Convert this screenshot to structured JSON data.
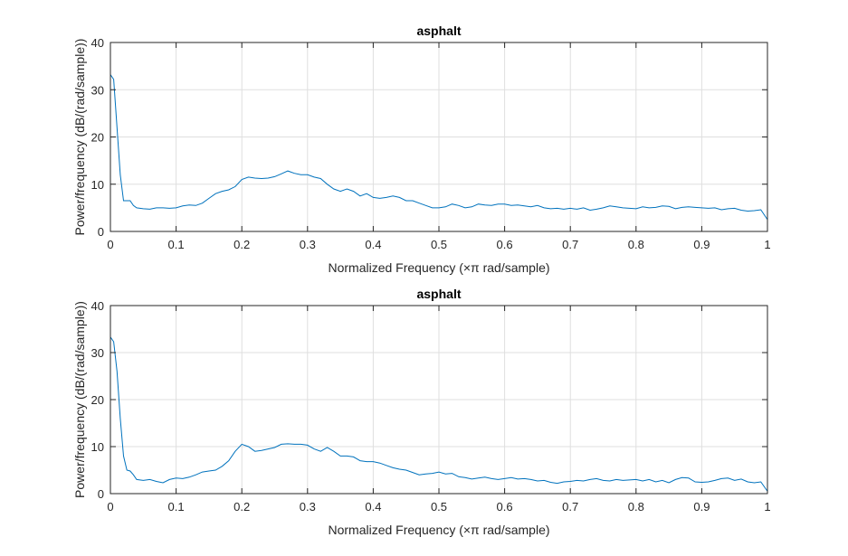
{
  "chart_data": [
    {
      "type": "line",
      "title": "asphalt",
      "xlabel": "Normalized Frequency  (×π rad/sample)",
      "ylabel": "Power/frequency (dB/(rad/sample))",
      "xlim": [
        0,
        1
      ],
      "ylim": [
        0,
        40
      ],
      "xticks": [
        "0",
        "0.1",
        "0.2",
        "0.3",
        "0.4",
        "0.5",
        "0.6",
        "0.7",
        "0.8",
        "0.9",
        "1"
      ],
      "yticks": [
        "0",
        "10",
        "20",
        "30",
        "40"
      ],
      "grid": true,
      "color": "#0072bd",
      "x": [
        0,
        0.005,
        0.01,
        0.015,
        0.02,
        0.03,
        0.035,
        0.04,
        0.05,
        0.06,
        0.07,
        0.08,
        0.09,
        0.1,
        0.11,
        0.12,
        0.13,
        0.14,
        0.15,
        0.16,
        0.17,
        0.18,
        0.19,
        0.2,
        0.21,
        0.22,
        0.23,
        0.24,
        0.25,
        0.26,
        0.27,
        0.28,
        0.29,
        0.3,
        0.31,
        0.32,
        0.33,
        0.34,
        0.35,
        0.36,
        0.37,
        0.38,
        0.39,
        0.4,
        0.41,
        0.42,
        0.43,
        0.44,
        0.45,
        0.46,
        0.47,
        0.48,
        0.49,
        0.5,
        0.51,
        0.52,
        0.53,
        0.54,
        0.55,
        0.56,
        0.57,
        0.58,
        0.59,
        0.6,
        0.61,
        0.62,
        0.63,
        0.64,
        0.65,
        0.66,
        0.67,
        0.68,
        0.69,
        0.7,
        0.71,
        0.72,
        0.73,
        0.74,
        0.75,
        0.76,
        0.77,
        0.78,
        0.79,
        0.8,
        0.81,
        0.82,
        0.83,
        0.84,
        0.85,
        0.86,
        0.87,
        0.88,
        0.89,
        0.9,
        0.91,
        0.92,
        0.93,
        0.94,
        0.95,
        0.96,
        0.97,
        0.98,
        0.99,
        1.0
      ],
      "y": [
        33.2,
        32.2,
        22,
        12,
        6.5,
        6.5,
        5.5,
        5,
        4.8,
        4.7,
        5,
        5,
        4.9,
        5,
        5.4,
        5.6,
        5.5,
        6,
        7,
        8,
        8.5,
        8.8,
        9.5,
        11,
        11.5,
        11.3,
        11.2,
        11.3,
        11.6,
        12.2,
        12.8,
        12.3,
        12,
        12,
        11.5,
        11.2,
        10,
        9,
        8.5,
        9,
        8.5,
        7.5,
        8,
        7.2,
        7,
        7.2,
        7.5,
        7.2,
        6.5,
        6.5,
        6,
        5.5,
        5,
        5,
        5.2,
        5.8,
        5.5,
        5,
        5.2,
        5.8,
        5.6,
        5.5,
        5.8,
        5.8,
        5.5,
        5.6,
        5.4,
        5.2,
        5.5,
        5,
        4.8,
        4.9,
        4.7,
        4.9,
        4.7,
        5,
        4.5,
        4.7,
        5,
        5.4,
        5.2,
        5,
        4.9,
        4.8,
        5.2,
        5,
        5.1,
        5.4,
        5.3,
        4.8,
        5.1,
        5.2,
        5.1,
        5,
        4.9,
        5,
        4.6,
        4.8,
        4.9,
        4.5,
        4.3,
        4.4,
        4.6,
        2.5
      ]
    },
    {
      "type": "line",
      "title": "asphalt",
      "xlabel": "Normalized Frequency  (×π rad/sample)",
      "ylabel": "Power/frequency (dB/(rad/sample))",
      "xlim": [
        0,
        1
      ],
      "ylim": [
        0,
        40
      ],
      "xticks": [
        "0",
        "0.1",
        "0.2",
        "0.3",
        "0.4",
        "0.5",
        "0.6",
        "0.7",
        "0.8",
        "0.9",
        "1"
      ],
      "yticks": [
        "0",
        "10",
        "20",
        "30",
        "40"
      ],
      "grid": true,
      "color": "#0072bd",
      "x": [
        0,
        0.005,
        0.01,
        0.015,
        0.02,
        0.025,
        0.03,
        0.035,
        0.04,
        0.05,
        0.06,
        0.07,
        0.08,
        0.09,
        0.1,
        0.11,
        0.12,
        0.13,
        0.14,
        0.15,
        0.16,
        0.17,
        0.18,
        0.19,
        0.2,
        0.21,
        0.22,
        0.23,
        0.24,
        0.25,
        0.26,
        0.27,
        0.28,
        0.29,
        0.3,
        0.31,
        0.32,
        0.33,
        0.34,
        0.35,
        0.36,
        0.37,
        0.38,
        0.39,
        0.4,
        0.41,
        0.42,
        0.43,
        0.44,
        0.45,
        0.46,
        0.47,
        0.48,
        0.49,
        0.5,
        0.51,
        0.52,
        0.53,
        0.54,
        0.55,
        0.56,
        0.57,
        0.58,
        0.59,
        0.6,
        0.61,
        0.62,
        0.63,
        0.64,
        0.65,
        0.66,
        0.67,
        0.68,
        0.69,
        0.7,
        0.71,
        0.72,
        0.73,
        0.74,
        0.75,
        0.76,
        0.77,
        0.78,
        0.79,
        0.8,
        0.81,
        0.82,
        0.83,
        0.84,
        0.85,
        0.86,
        0.87,
        0.88,
        0.89,
        0.9,
        0.91,
        0.92,
        0.93,
        0.94,
        0.95,
        0.96,
        0.97,
        0.98,
        0.99,
        1.0
      ],
      "y": [
        33.3,
        32.3,
        26,
        16,
        8,
        5,
        4.8,
        4,
        3,
        2.8,
        3,
        2.6,
        2.3,
        3,
        3.3,
        3.2,
        3.5,
        4,
        4.6,
        4.8,
        5,
        5.8,
        7,
        9,
        10.5,
        10,
        9,
        9.2,
        9.5,
        9.8,
        10.5,
        10.6,
        10.5,
        10.5,
        10.3,
        9.5,
        9,
        9.8,
        9,
        8,
        8,
        7.8,
        7,
        6.8,
        6.8,
        6.5,
        6,
        5.5,
        5.2,
        5,
        4.5,
        4,
        4.2,
        4.3,
        4.6,
        4.2,
        4.3,
        3.6,
        3.4,
        3.1,
        3.3,
        3.5,
        3.2,
        3,
        3.2,
        3.4,
        3.1,
        3.2,
        3,
        2.7,
        2.8,
        2.4,
        2.2,
        2.5,
        2.6,
        2.8,
        2.7,
        3,
        3.2,
        2.8,
        2.7,
        3,
        2.8,
        2.9,
        3,
        2.7,
        3,
        2.5,
        2.8,
        2.3,
        3,
        3.4,
        3.3,
        2.5,
        2.4,
        2.5,
        2.8,
        3.2,
        3.3,
        2.8,
        3.1,
        2.5,
        2.3,
        2.5,
        0.5
      ]
    }
  ]
}
